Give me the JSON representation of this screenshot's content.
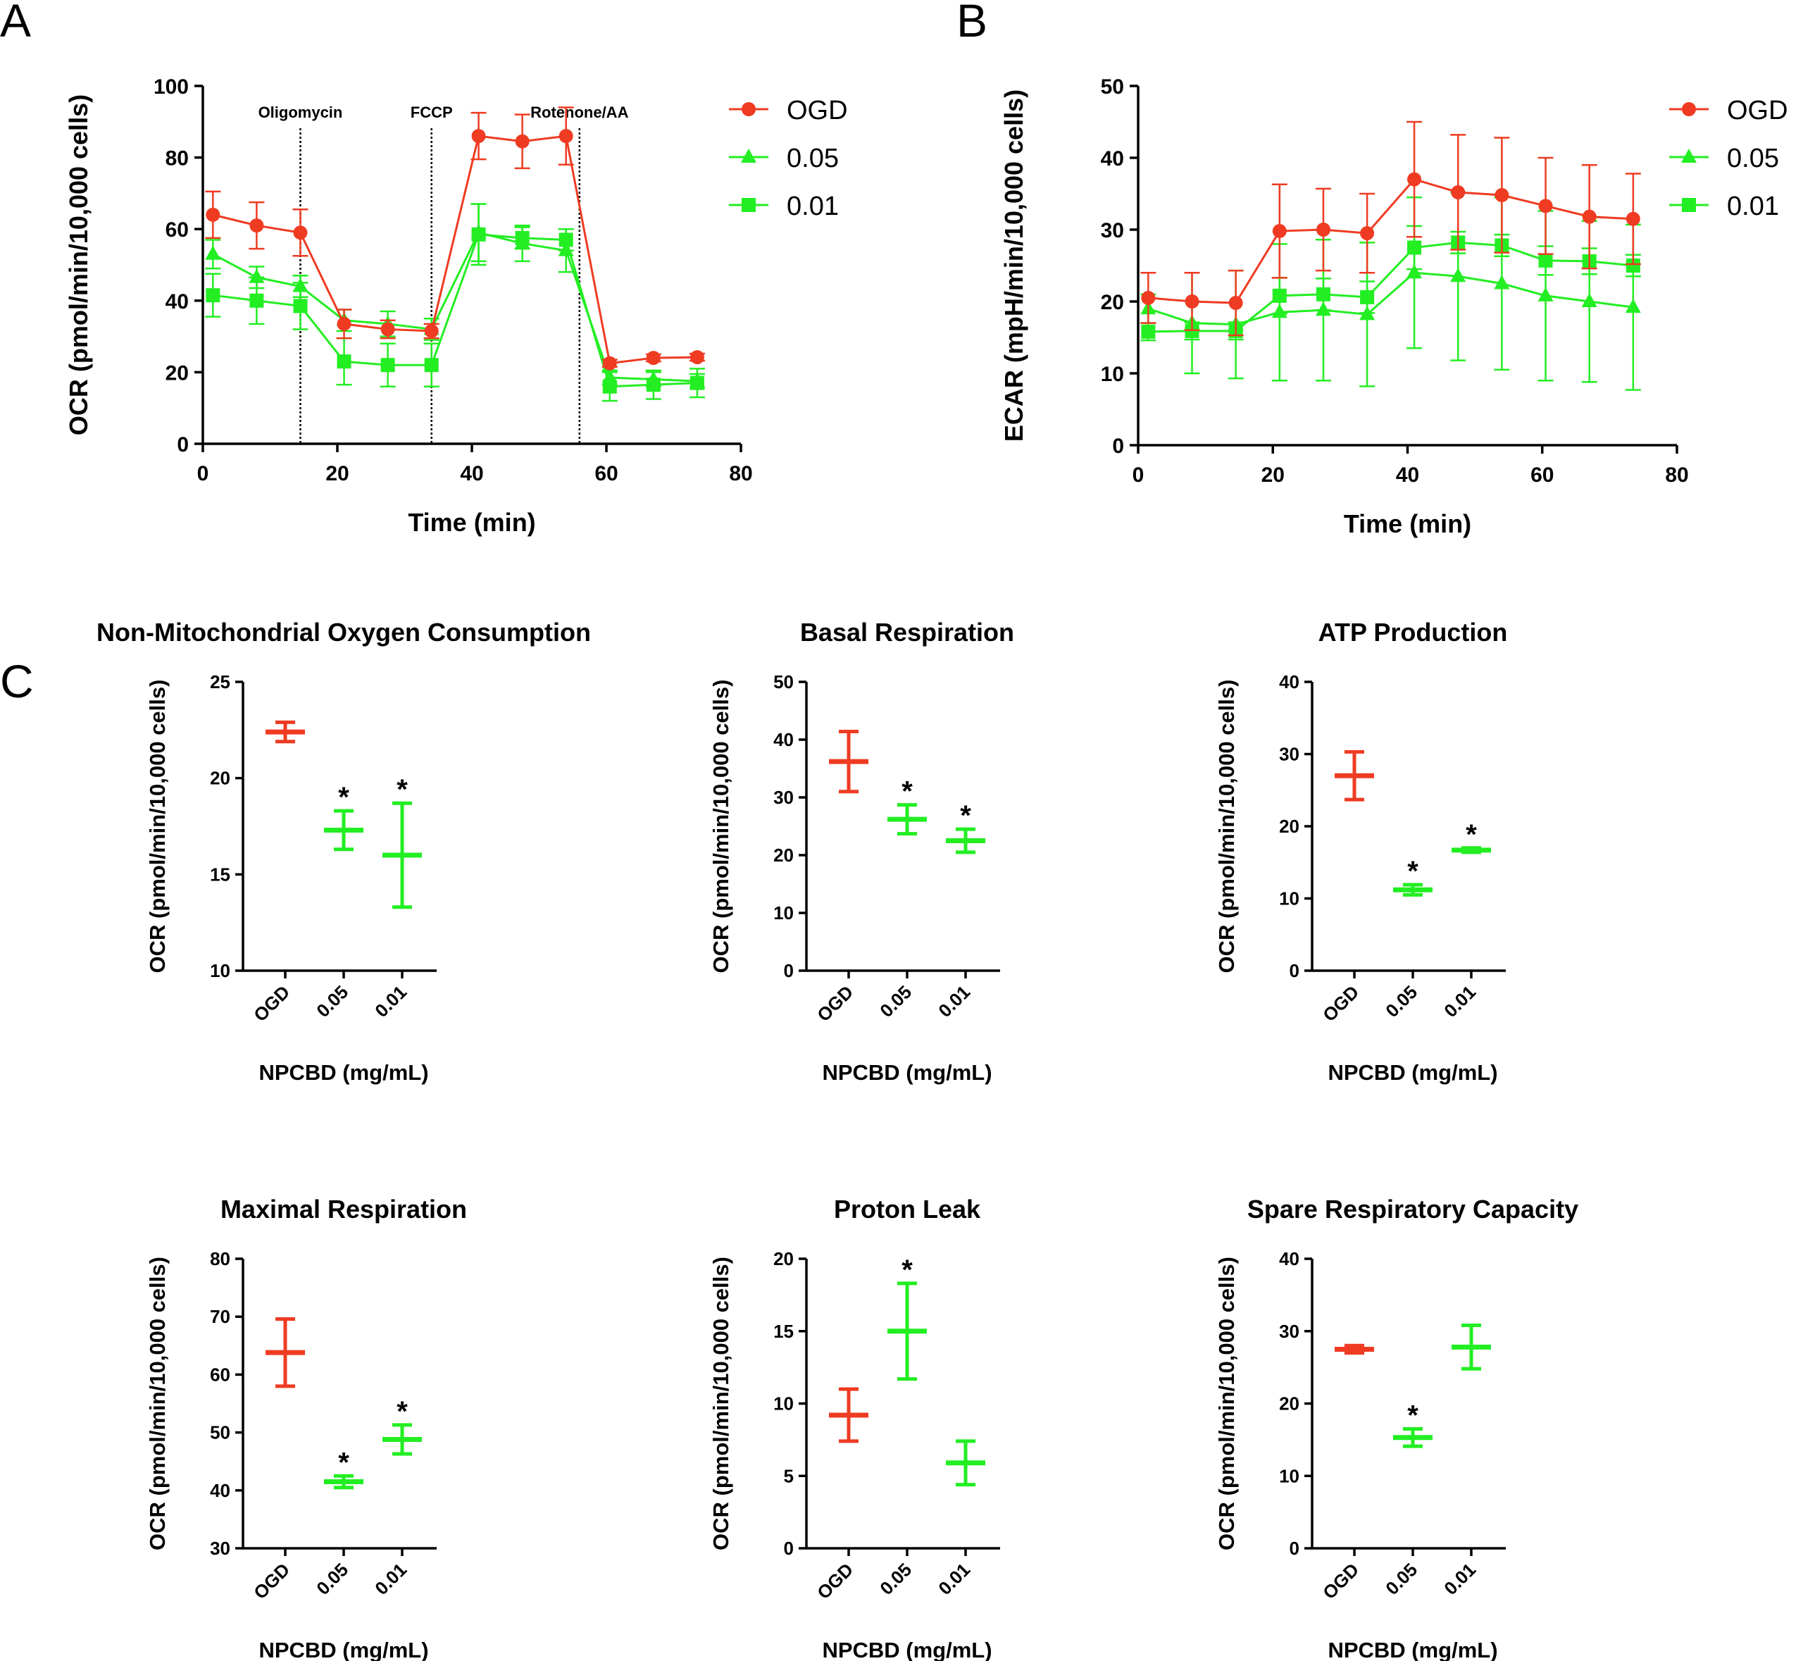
{
  "colors": {
    "ogd": "#ef3b22",
    "green": "#22ee22",
    "axis": "#000000"
  },
  "panel_labels": {
    "a": "A",
    "b": "B",
    "c": "C"
  },
  "chart_data": [
    {
      "id": "A",
      "type": "line",
      "xlabel": "Time (min)",
      "ylabel": "OCR (pmol/min/10,000 cells)",
      "xlim": [
        0,
        80
      ],
      "ylim": [
        0,
        100
      ],
      "xticks": [
        "0",
        "20",
        "40",
        "60",
        "80"
      ],
      "yticks": [
        "0",
        "20",
        "40",
        "60",
        "80",
        "100"
      ],
      "injections": [
        {
          "label": "Oligomycin",
          "x": 14.5
        },
        {
          "label": "FCCP",
          "x": 34
        },
        {
          "label": "Rotenone/AA",
          "x": 56
        }
      ],
      "x": [
        1.5,
        8,
        14.5,
        21,
        27.5,
        34,
        41,
        47.5,
        54,
        60.5,
        67,
        73.5
      ],
      "series": [
        {
          "name": "OGD",
          "marker": "circle",
          "color_key": "ogd",
          "values": [
            64,
            61,
            59,
            33.5,
            32,
            31.5,
            86,
            84.5,
            86,
            22.5,
            24,
            24.2
          ],
          "errors": [
            6.5,
            6.5,
            6.5,
            4,
            2.5,
            2,
            6.5,
            7.5,
            8,
            1,
            1,
            1
          ]
        },
        {
          "name": "0.05",
          "marker": "triangle",
          "color_key": "green",
          "values": [
            53,
            46.5,
            44,
            34.5,
            33.5,
            32,
            59,
            56,
            54,
            18.5,
            18,
            17.5
          ],
          "errors": [
            4,
            3,
            3,
            3,
            3.5,
            3,
            8,
            5,
            6,
            2,
            2,
            2
          ]
        },
        {
          "name": "0.01",
          "marker": "square",
          "color_key": "green",
          "values": [
            41.5,
            40,
            38.5,
            23,
            22,
            22,
            58.5,
            57.5,
            57,
            16,
            16.5,
            17
          ],
          "errors": [
            6,
            6.5,
            6.5,
            6.5,
            6,
            6,
            8.5,
            3,
            3,
            4,
            4,
            4
          ]
        }
      ]
    },
    {
      "id": "B",
      "type": "line",
      "xlabel": "Time (min)",
      "ylabel": "ECAR (mpH/min/10,000 cells)",
      "xlim": [
        0,
        80
      ],
      "ylim": [
        0,
        50
      ],
      "xticks": [
        "0",
        "20",
        "40",
        "60",
        "80"
      ],
      "yticks": [
        "0",
        "10",
        "20",
        "30",
        "40",
        "50"
      ],
      "x": [
        1.5,
        8,
        14.5,
        21,
        27.5,
        34,
        41,
        47.5,
        54,
        60.5,
        67,
        73.5
      ],
      "series": [
        {
          "name": "OGD",
          "marker": "circle",
          "color_key": "ogd",
          "values": [
            20.5,
            20,
            19.8,
            29.8,
            30,
            29.5,
            37,
            35.2,
            34.8,
            33.3,
            31.8,
            31.5
          ],
          "errors": [
            3.5,
            4,
            4.5,
            6.5,
            5.7,
            5.5,
            8,
            8,
            8,
            6.7,
            7.2,
            6.3
          ]
        },
        {
          "name": "0.05",
          "marker": "triangle",
          "color_key": "green",
          "values": [
            19,
            17,
            16.8,
            18.5,
            18.8,
            18.2,
            24,
            23.5,
            22.5,
            20.8,
            20,
            19.2
          ],
          "errors": [
            2,
            7,
            7.5,
            9.5,
            9.8,
            10,
            10.5,
            11.7,
            12,
            11.8,
            11.2,
            11.5
          ]
        },
        {
          "name": "0.01",
          "marker": "square",
          "color_key": "green",
          "values": [
            15.8,
            15.9,
            15.9,
            20.8,
            21,
            20.6,
            27.5,
            28.2,
            27.8,
            25.7,
            25.6,
            25
          ],
          "errors": [
            1.2,
            1.2,
            1.2,
            2.5,
            2.2,
            2.2,
            3,
            1.5,
            1.5,
            2,
            1.8,
            1.5
          ]
        }
      ]
    },
    {
      "id": "C1",
      "type": "scatter",
      "title": "Non-Mitochondrial Oxygen Consumption",
      "xlabel": "NPCBD (mg/mL)",
      "ylabel": "OCR (pmol/min/10,000 cells)",
      "ylim": [
        10,
        25
      ],
      "yticks": [
        "10",
        "15",
        "20",
        "25"
      ],
      "categories": [
        "OGD",
        "0.05",
        "0.01"
      ],
      "values": [
        22.4,
        17.3,
        16
      ],
      "errors": [
        0.5,
        1,
        2.7
      ],
      "significant": [
        "",
        "*",
        "*"
      ]
    },
    {
      "id": "C2",
      "type": "scatter",
      "title": "Basal Respiration",
      "xlabel": "NPCBD (mg/mL)",
      "ylabel": "OCR (pmol/min/10,000 cells)",
      "ylim": [
        0,
        50
      ],
      "yticks": [
        "0",
        "10",
        "20",
        "30",
        "40",
        "50"
      ],
      "categories": [
        "OGD",
        "0.05",
        "0.01"
      ],
      "values": [
        36.2,
        26.2,
        22.5
      ],
      "errors": [
        5.2,
        2.5,
        2
      ],
      "significant": [
        "",
        "*",
        "*"
      ]
    },
    {
      "id": "C3",
      "type": "scatter",
      "title": "ATP Production",
      "xlabel": "NPCBD (mg/mL)",
      "ylabel": "OCR (pmol/min/10,000 cells)",
      "ylim": [
        0,
        40
      ],
      "yticks": [
        "0",
        "10",
        "20",
        "30",
        "40"
      ],
      "categories": [
        "OGD",
        "0.05",
        "0.01"
      ],
      "values": [
        27,
        11.2,
        16.7
      ],
      "errors": [
        3.3,
        0.7,
        0.3
      ],
      "significant": [
        "",
        "*",
        "*"
      ]
    },
    {
      "id": "C4",
      "type": "scatter",
      "title": "Maximal Respiration",
      "xlabel": "NPCBD (mg/mL)",
      "ylabel": "OCR (pmol/min/10,000 cells)",
      "ylim": [
        30,
        80
      ],
      "yticks": [
        "30",
        "40",
        "50",
        "60",
        "70",
        "80"
      ],
      "categories": [
        "OGD",
        "0.05",
        "0.01"
      ],
      "values": [
        63.8,
        41.5,
        48.8
      ],
      "errors": [
        5.8,
        1,
        2.5
      ],
      "significant": [
        "",
        "*",
        "*"
      ]
    },
    {
      "id": "C5",
      "type": "scatter",
      "title": "Proton Leak",
      "xlabel": "NPCBD (mg/mL)",
      "ylabel": "OCR (pmol/min/10,000 cells)",
      "ylim": [
        0,
        20
      ],
      "yticks": [
        "0",
        "5",
        "10",
        "15",
        "20"
      ],
      "categories": [
        "OGD",
        "0.05",
        "0.01"
      ],
      "values": [
        9.2,
        15,
        5.9
      ],
      "errors": [
        1.8,
        3.3,
        1.5
      ],
      "significant": [
        "",
        "*",
        ""
      ]
    },
    {
      "id": "C6",
      "type": "scatter",
      "title": "Spare Respiratory Capacity",
      "xlabel": "NPCBD (mg/mL)",
      "ylabel": "OCR (pmol/min/10,000 cells)",
      "ylim": [
        0,
        40
      ],
      "yticks": [
        "0",
        "10",
        "20",
        "30",
        "40"
      ],
      "categories": [
        "OGD",
        "0.05",
        "0.01"
      ],
      "values": [
        27.5,
        15.3,
        27.8
      ],
      "errors": [
        0.5,
        1.2,
        3
      ],
      "significant": [
        "",
        "*",
        ""
      ]
    }
  ]
}
